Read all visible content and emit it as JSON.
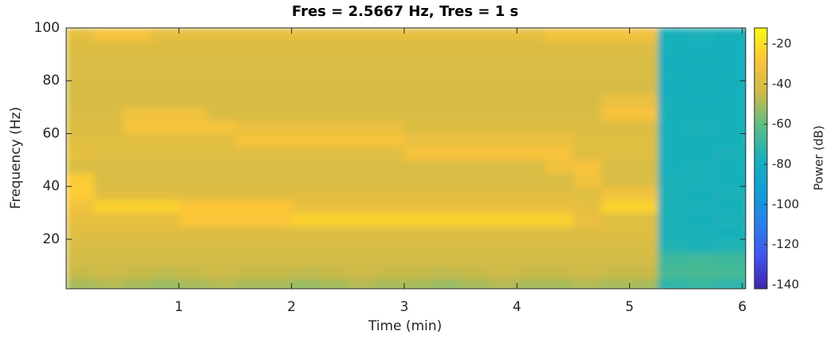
{
  "chart_data": {
    "type": "heatmap",
    "title": "Fres = 2.5667 Hz, Tres = 1 s",
    "xlabel": "Time (min)",
    "ylabel": "Frequency (Hz)",
    "colorbar_label": "Power (dB)",
    "x": [
      0.125,
      0.375,
      0.625,
      0.875,
      1.125,
      1.375,
      1.625,
      1.875,
      2.125,
      2.375,
      2.625,
      2.875,
      3.125,
      3.375,
      3.625,
      3.875,
      4.125,
      4.375,
      4.625,
      4.875,
      5.125,
      5.375,
      5.625,
      5.875,
      6.125
    ],
    "y": [
      2.5,
      7.5,
      12.5,
      17.5,
      22.5,
      27.5,
      32.5,
      37.5,
      42.5,
      47.5,
      52.5,
      57.5,
      62.5,
      67.5,
      72.5,
      77.5,
      82.5,
      87.5,
      92.5,
      97.5
    ],
    "values": [
      [
        -50,
        -48,
        -50,
        -52,
        -50,
        -48,
        -50,
        -50,
        -52,
        -50,
        -48,
        -50,
        -50,
        -52,
        -50,
        -48,
        -50,
        -50,
        -48,
        -50,
        -50,
        -72,
        -70,
        -72,
        -72
      ],
      [
        -45,
        -44,
        -45,
        -46,
        -45,
        -44,
        -45,
        -45,
        -46,
        -45,
        -44,
        -45,
        -45,
        -46,
        -45,
        -44,
        -45,
        -45,
        -44,
        -45,
        -45,
        -66,
        -65,
        -66,
        -66
      ],
      [
        -42,
        -42,
        -42,
        -42,
        -42,
        -42,
        -42,
        -42,
        -42,
        -42,
        -42,
        -42,
        -42,
        -42,
        -42,
        -42,
        -42,
        -42,
        -42,
        -42,
        -42,
        -68,
        -67,
        -68,
        -68
      ],
      [
        -40,
        -40,
        -40,
        -40,
        -40,
        -40,
        -40,
        -40,
        -40,
        -40,
        -40,
        -40,
        -40,
        -40,
        -40,
        -40,
        -40,
        -40,
        -40,
        -40,
        -40,
        -75,
        -76,
        -75,
        -75
      ],
      [
        -38,
        -38,
        -38,
        -38,
        -38,
        -38,
        -38,
        -38,
        -38,
        -38,
        -38,
        -38,
        -38,
        -38,
        -38,
        -38,
        -38,
        -38,
        -38,
        -38,
        -38,
        -76,
        -76,
        -77,
        -76
      ],
      [
        -36,
        -36,
        -36,
        -36,
        -28,
        -28,
        -28,
        -28,
        -24,
        -24,
        -24,
        -24,
        -24,
        -24,
        -24,
        -24,
        -24,
        -24,
        -34,
        -38,
        -38,
        -76,
        -77,
        -76,
        -76
      ],
      [
        -32,
        -24,
        -24,
        -24,
        -28,
        -28,
        -28,
        -28,
        -34,
        -34,
        -34,
        -34,
        -34,
        -34,
        -34,
        -34,
        -34,
        -34,
        -36,
        -24,
        -24,
        -76,
        -76,
        -77,
        -76
      ],
      [
        -26,
        -38,
        -38,
        -38,
        -38,
        -38,
        -38,
        -38,
        -38,
        -38,
        -38,
        -38,
        -38,
        -38,
        -38,
        -38,
        -38,
        -38,
        -38,
        -32,
        -32,
        -76,
        -77,
        -76,
        -76
      ],
      [
        -26,
        -40,
        -40,
        -40,
        -40,
        -40,
        -40,
        -40,
        -40,
        -40,
        -40,
        -40,
        -40,
        -40,
        -40,
        -40,
        -40,
        -40,
        -32,
        -40,
        -40,
        -76,
        -76,
        -77,
        -77
      ],
      [
        -40,
        -40,
        -40,
        -40,
        -40,
        -40,
        -40,
        -40,
        -40,
        -40,
        -40,
        -40,
        -40,
        -40,
        -40,
        -40,
        -40,
        -32,
        -30,
        -40,
        -40,
        -77,
        -76,
        -77,
        -77
      ],
      [
        -36,
        -38,
        -38,
        -38,
        -38,
        -38,
        -38,
        -38,
        -38,
        -38,
        -38,
        -38,
        -30,
        -30,
        -30,
        -30,
        -30,
        -30,
        -38,
        -38,
        -38,
        -77,
        -77,
        -76,
        -77
      ],
      [
        -38,
        -38,
        -38,
        -38,
        -38,
        -38,
        -30,
        -30,
        -30,
        -30,
        -30,
        -30,
        -34,
        -34,
        -34,
        -34,
        -34,
        -34,
        -38,
        -38,
        -38,
        -77,
        -77,
        -77,
        -76
      ],
      [
        -39,
        -39,
        -30,
        -30,
        -30,
        -30,
        -34,
        -34,
        -34,
        -34,
        -34,
        -34,
        -39,
        -39,
        -39,
        -39,
        -39,
        -39,
        -39,
        -39,
        -39,
        -77,
        -76,
        -77,
        -77
      ],
      [
        -40,
        -40,
        -32,
        -32,
        -32,
        -40,
        -40,
        -40,
        -40,
        -40,
        -40,
        -40,
        -40,
        -40,
        -40,
        -40,
        -40,
        -40,
        -40,
        -30,
        -30,
        -77,
        -77,
        -77,
        -77
      ],
      [
        -41,
        -41,
        -41,
        -41,
        -41,
        -41,
        -41,
        -41,
        -41,
        -41,
        -41,
        -41,
        -41,
        -41,
        -41,
        -41,
        -41,
        -41,
        -41,
        -34,
        -34,
        -77,
        -78,
        -77,
        -77
      ],
      [
        -41,
        -41,
        -41,
        -41,
        -41,
        -41,
        -41,
        -41,
        -41,
        -41,
        -41,
        -41,
        -41,
        -41,
        -41,
        -41,
        -41,
        -41,
        -41,
        -41,
        -41,
        -78,
        -77,
        -78,
        -77
      ],
      [
        -40,
        -40,
        -40,
        -40,
        -40,
        -40,
        -40,
        -40,
        -40,
        -40,
        -40,
        -40,
        -40,
        -40,
        -40,
        -40,
        -40,
        -40,
        -40,
        -40,
        -40,
        -77,
        -78,
        -77,
        -78
      ],
      [
        -40,
        -40,
        -40,
        -40,
        -40,
        -40,
        -40,
        -40,
        -40,
        -40,
        -40,
        -40,
        -40,
        -40,
        -40,
        -40,
        -40,
        -40,
        -40,
        -40,
        -40,
        -78,
        -77,
        -78,
        -78
      ],
      [
        -39,
        -39,
        -39,
        -39,
        -39,
        -39,
        -39,
        -39,
        -39,
        -39,
        -39,
        -39,
        -39,
        -39,
        -39,
        -39,
        -39,
        -39,
        -39,
        -39,
        -39,
        -77,
        -78,
        -78,
        -77
      ],
      [
        -36,
        -30,
        -30,
        -36,
        -36,
        -36,
        -36,
        -36,
        -36,
        -36,
        -36,
        -36,
        -36,
        -36,
        -36,
        -36,
        -36,
        -32,
        -32,
        -32,
        -32,
        -77,
        -76,
        -77,
        -77
      ]
    ],
    "xlim": [
      0,
      6.03
    ],
    "ylim": [
      1.28,
      100
    ],
    "xticks": [
      1,
      2,
      3,
      4,
      5,
      6
    ],
    "yticks": [
      20,
      40,
      60,
      80,
      100
    ],
    "clim": [
      -142,
      -12
    ],
    "cticks": [
      -140,
      -120,
      -100,
      -80,
      -60,
      -40,
      -20
    ],
    "colormap": [
      "#3e26a8",
      "#4354f0",
      "#2a80ec",
      "#0f9fd6",
      "#18b0bb",
      "#5cbe84",
      "#cbba48",
      "#fcc43a",
      "#f9fb0e"
    ]
  }
}
